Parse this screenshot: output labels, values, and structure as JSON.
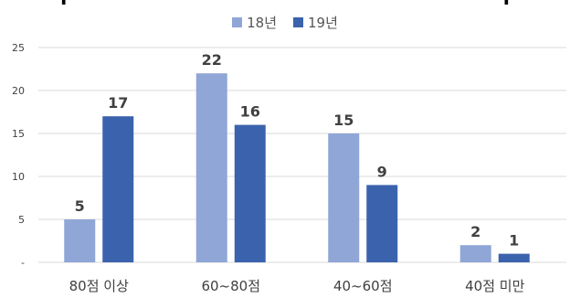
{
  "chart_data": {
    "type": "bar",
    "title": "",
    "categories": [
      "80점 이상",
      "60~80점",
      "40~60점",
      "40점 미만"
    ],
    "series": [
      {
        "name": "18년",
        "values": [
          5,
          22,
          15,
          2
        ],
        "color": "#8fa6d6"
      },
      {
        "name": "19년",
        "values": [
          17,
          16,
          9,
          1
        ],
        "color": "#3b62ad"
      }
    ],
    "ylim": [
      0,
      25
    ],
    "yticks": [
      "-",
      "5",
      "10",
      "15",
      "20",
      "25"
    ],
    "legend_position": "top",
    "grid": true
  }
}
